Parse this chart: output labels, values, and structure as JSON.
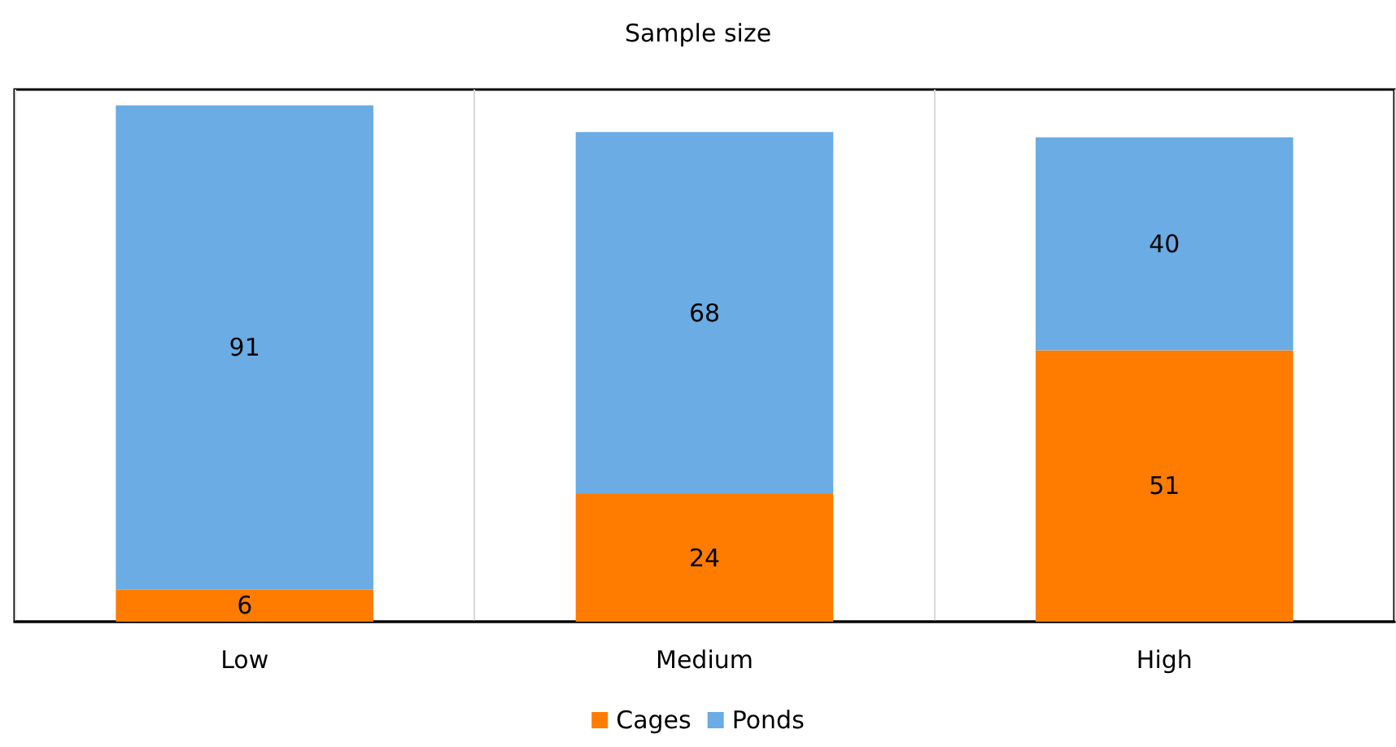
{
  "chart_data": {
    "type": "bar",
    "title": "Sample size",
    "categories": [
      "Low",
      "Medium",
      "High"
    ],
    "stacked": true,
    "data_labels": true,
    "grid": "x",
    "legend": "bottom",
    "series": [
      {
        "name": "Cages",
        "color": "#ff7c00",
        "values": [
          6,
          24,
          51
        ]
      },
      {
        "name": "Ponds",
        "color": "#6aace3",
        "values": [
          91,
          68,
          40
        ]
      }
    ]
  }
}
